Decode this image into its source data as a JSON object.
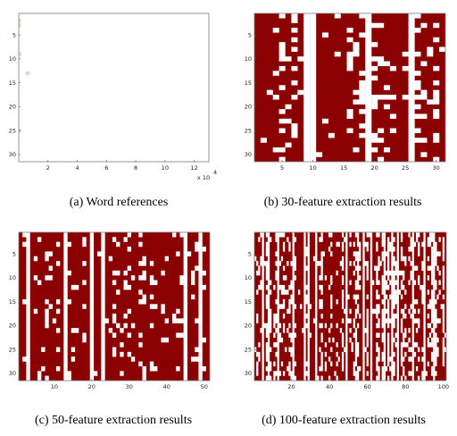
{
  "colors": {
    "filled": "#8b0000",
    "empty": "#ffffff",
    "word_marks": "#e8a050"
  },
  "chart_data": [
    {
      "type": "heatmap",
      "caption": "(a)  Word references",
      "rows": 31,
      "x_range": [
        0,
        130000
      ],
      "x_ticks": [
        "2",
        "4",
        "6",
        "8",
        "10",
        "12"
      ],
      "x_tick_values": [
        20000,
        40000,
        60000,
        80000,
        100000,
        120000
      ],
      "x_multiplier": "x 10",
      "x_multiplier_exponent": "4",
      "y_ticks": [
        "5",
        "10",
        "15",
        "20",
        "25",
        "30"
      ],
      "y_tick_values": [
        5,
        10,
        15,
        20,
        25,
        30
      ],
      "marks": [
        {
          "row": 2,
          "x": 500
        },
        {
          "row": 3,
          "x": 500
        },
        {
          "row": 9,
          "x": 600
        },
        {
          "row": 13,
          "x": 5200
        },
        {
          "row": 13,
          "x": 6400
        },
        {
          "row": 25,
          "x": 700
        }
      ]
    },
    {
      "type": "heatmap",
      "caption": "(b)  30-feature extraction results",
      "rows": 31,
      "cols": 31,
      "x_ticks": [
        "5",
        "10",
        "15",
        "20",
        "25",
        "30"
      ],
      "x_tick_values": [
        5,
        10,
        15,
        20,
        25,
        30
      ],
      "y_ticks": [
        "5",
        "10",
        "15",
        "20",
        "25",
        "30"
      ],
      "y_tick_values": [
        5,
        10,
        15,
        20,
        25,
        30
      ],
      "white_full_columns": [
        9,
        10,
        19,
        26
      ],
      "white_cell_probability": 0.14,
      "seed": 7
    },
    {
      "type": "heatmap",
      "caption": "(c)  50-feature extraction results",
      "rows": 31,
      "cols": 51,
      "x_ticks": [
        "10",
        "20",
        "30",
        "40",
        "50"
      ],
      "x_tick_values": [
        10,
        20,
        30,
        40,
        50
      ],
      "y_ticks": [
        "5",
        "10",
        "15",
        "20",
        "25",
        "30"
      ],
      "y_tick_values": [
        5,
        10,
        15,
        20,
        25,
        30
      ],
      "white_full_columns": [
        3,
        13,
        20,
        23,
        45,
        49
      ],
      "white_cell_probability": 0.12,
      "seed": 21
    },
    {
      "type": "heatmap",
      "caption": "(d)  100-feature extraction results",
      "rows": 31,
      "cols": 101,
      "x_ticks": [
        "20",
        "40",
        "60",
        "80",
        "100"
      ],
      "x_tick_values": [
        20,
        40,
        60,
        80,
        100
      ],
      "y_ticks": [
        "5",
        "10",
        "15",
        "20",
        "25",
        "30"
      ],
      "y_tick_values": [
        5,
        10,
        15,
        20,
        25,
        30
      ],
      "white_full_columns": [
        5,
        8,
        13,
        21,
        27,
        29,
        33,
        49,
        58,
        62,
        69,
        73,
        76,
        84,
        90,
        95
      ],
      "white_cell_probability": 0.3,
      "seed": 99
    }
  ]
}
